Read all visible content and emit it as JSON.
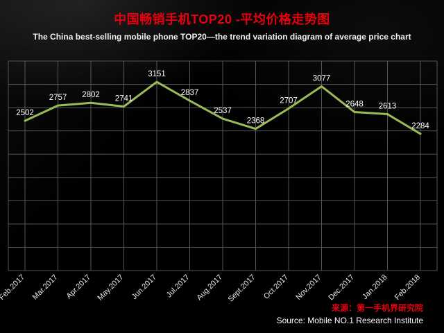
{
  "header": {
    "title": "中国畅销手机TOP20 -平均价格走势图",
    "subtitle": "The China best-selling mobile phone TOP20—the trend variation diagram of average price chart"
  },
  "footer": {
    "source_cn": "来源：第一手机界研究院",
    "source_en": "Source: Mobile NO.1 Research Institute"
  },
  "colors": {
    "title": "#e8000d",
    "line": "#9bbb59",
    "grid": "#565656",
    "data_label": "#ffffff",
    "tick_label": "#e8e8e8",
    "source_cn": "#e8000d"
  },
  "chart_data": {
    "type": "line",
    "title": "中国畅销手机TOP20 -平均价格走势图",
    "categories": [
      "Feb.2017",
      "Mar.2017",
      "Apr.2017",
      "May.2017",
      "Jun.2017",
      "Jul.2017",
      "Aug.2017",
      "Sept.2017",
      "Oct.2017",
      "Nov.2017",
      "Dec.2017",
      "Jan.2018",
      "Feb.2018"
    ],
    "values": [
      2502,
      2757,
      2802,
      2741,
      3151,
      2837,
      2537,
      2368,
      2707,
      3077,
      2648,
      2613,
      2284
    ],
    "xlabel": "",
    "ylabel": "",
    "ylim": [
      0,
      3500
    ],
    "grid": true,
    "legend": "none",
    "data_labels": true
  }
}
